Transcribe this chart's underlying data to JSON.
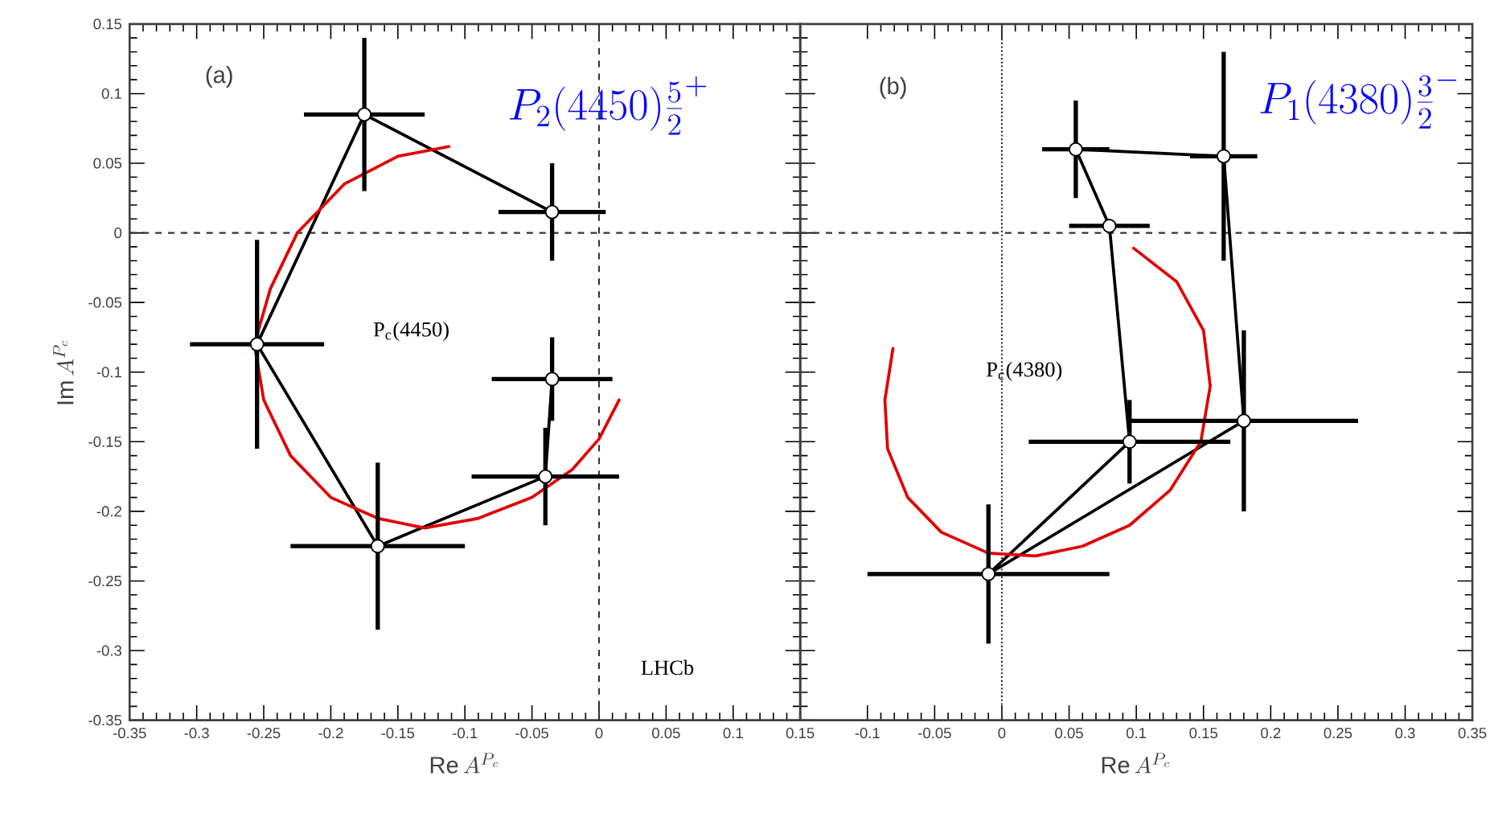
{
  "chart_data": [
    {
      "type": "scatter",
      "xlabel": "\\mathrm{Re}\\,A^{P_c}",
      "ylabel": "\\mathrm{Im}\\,A^{P_c}",
      "xlim": [
        -0.35,
        0.15
      ],
      "ylim": [
        -0.35,
        0.15
      ],
      "xticks": [
        -0.35,
        -0.3,
        -0.25,
        -0.2,
        -0.15,
        -0.1,
        -0.05,
        0,
        0.05,
        0.1,
        0.15
      ],
      "yticks": [
        -0.35,
        -0.3,
        -0.25,
        -0.2,
        -0.15,
        -0.1,
        -0.05,
        0,
        0.05,
        0.1,
        0.15
      ],
      "ref_lines": [
        {
          "axis": "x",
          "value": 0,
          "line_style": "dashed"
        },
        {
          "axis": "y",
          "value": 0,
          "line_style": "dashed"
        }
      ],
      "annotations": [
        "(a)",
        "P$_{c}$(4450)",
        "LHCb",
        "P_2(4450)\\frac{5}{2}^{+}"
      ],
      "series": [
        {
          "marker": "circle",
          "color": "#000000",
          "x": [
            -0.035,
            -0.175,
            -0.255,
            -0.165,
            -0.04,
            -0.035
          ],
          "values": [
            0.015,
            0.085,
            -0.08,
            -0.225,
            -0.175,
            -0.105
          ],
          "xerrors": [
            0.04,
            0.045,
            0.05,
            0.065,
            0.055,
            0.045
          ],
          "errors": [
            0.035,
            0.055,
            0.075,
            0.06,
            0.035,
            0.03
          ]
        },
        {
          "type": "line",
          "marker": "none",
          "color": "#000000",
          "x": [
            -0.035,
            -0.175,
            -0.255,
            -0.165,
            -0.04,
            -0.035
          ],
          "values": [
            0.015,
            0.085,
            -0.08,
            -0.225,
            -0.175,
            -0.105
          ]
        },
        {
          "type": "line",
          "marker": "none",
          "color": "#e00000",
          "x": [
            -0.112,
            -0.15,
            -0.19,
            -0.225,
            -0.245,
            -0.257,
            -0.25,
            -0.23,
            -0.2,
            -0.165,
            -0.13,
            -0.09,
            -0.05,
            -0.02,
            0.0,
            0.015
          ],
          "values": [
            0.062,
            0.055,
            0.035,
            0.0,
            -0.04,
            -0.08,
            -0.12,
            -0.16,
            -0.19,
            -0.205,
            -0.212,
            -0.205,
            -0.19,
            -0.17,
            -0.148,
            -0.12
          ]
        }
      ]
    },
    {
      "type": "scatter",
      "xlabel": "\\mathrm{Re}\\,A^{P_c}",
      "xlim": [
        -0.15,
        0.35
      ],
      "ylim": [
        -0.35,
        0.15
      ],
      "xticks": [
        -0.1,
        -0.05,
        0,
        0.05,
        0.1,
        0.15,
        0.2,
        0.25,
        0.3,
        0.35
      ],
      "yticks": [
        -0.35,
        -0.3,
        -0.25,
        -0.2,
        -0.15,
        -0.1,
        -0.05,
        0,
        0.05,
        0.1,
        0.15
      ],
      "tick_labels": "x",
      "ref_lines": [
        {
          "axis": "x",
          "value": 0,
          "line_style": "dotted"
        },
        {
          "axis": "y",
          "value": 0,
          "line_style": "dashed"
        }
      ],
      "annotations": [
        "(b)",
        "P$_{c}$(4380)",
        "P_1(4380)\\frac{3}{2}^{-}"
      ],
      "series": [
        {
          "marker": "circle",
          "color": "#000000",
          "x": [
            0.165,
            0.055,
            0.08,
            0.095,
            -0.01,
            0.18
          ],
          "values": [
            0.055,
            0.06,
            0.005,
            -0.15,
            -0.245,
            -0.135
          ],
          "xerrors": [
            0.025,
            0.025,
            0.03,
            0.075,
            0.09,
            0.085
          ],
          "errors": [
            0.075,
            0.035,
            null,
            0.03,
            0.05,
            0.065
          ]
        },
        {
          "type": "line",
          "marker": "none",
          "color": "#000000",
          "x": [
            0.055,
            0.165,
            0.18
          ],
          "values": [
            0.06,
            0.055,
            -0.135
          ]
        },
        {
          "type": "line",
          "marker": "none",
          "color": "#000000",
          "x": [
            -0.01,
            0.18
          ],
          "values": [
            -0.245,
            -0.135
          ]
        },
        {
          "type": "line",
          "marker": "none",
          "color": "#000000",
          "x": [
            -0.01,
            0.095
          ],
          "values": [
            -0.245,
            -0.15
          ]
        },
        {
          "type": "line",
          "marker": "none",
          "color": "#000000",
          "x": [
            0.055,
            0.08,
            0.095
          ],
          "values": [
            0.06,
            0.005,
            -0.15
          ]
        },
        {
          "type": "line",
          "marker": "none",
          "color": "#e00000",
          "x": [
            -0.081,
            -0.087,
            -0.085,
            -0.07,
            -0.045,
            -0.01,
            0.025,
            0.06,
            0.095,
            0.125,
            0.148,
            0.155,
            0.15,
            0.13,
            0.098
          ],
          "values": [
            -0.083,
            -0.12,
            -0.155,
            -0.19,
            -0.215,
            -0.23,
            -0.232,
            -0.225,
            -0.21,
            -0.185,
            -0.15,
            -0.11,
            -0.07,
            -0.035,
            -0.011
          ]
        }
      ]
    }
  ]
}
